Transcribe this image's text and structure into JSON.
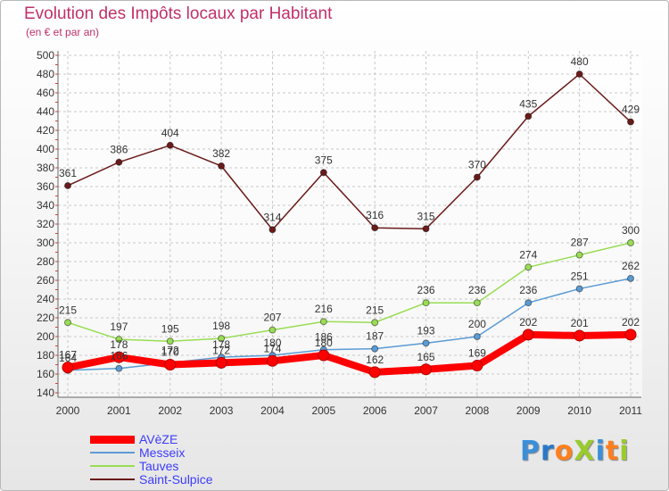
{
  "header": {
    "title": "Evolution des Impôts locaux par Habitant",
    "subtitle": "(en € et par an)"
  },
  "logo": {
    "text": "ProXiti",
    "letters": [
      "P",
      "r",
      "o",
      "X",
      "i",
      "t",
      "i"
    ],
    "colors": [
      "#3a8fd8",
      "#2a78c8",
      "#ff7f1e",
      "#9acb2e",
      "#3a8fd8",
      "#ff7f1e",
      "#9acb2e"
    ]
  },
  "chart_data": {
    "type": "line",
    "title": "Evolution des Impôts locaux par Habitant",
    "subtitle": "(en € et par an)",
    "xlabel": "",
    "ylabel": "",
    "categories": [
      "2000",
      "2001",
      "2002",
      "2003",
      "2004",
      "2005",
      "2006",
      "2007",
      "2008",
      "2009",
      "2010",
      "2011"
    ],
    "ylim": [
      140,
      500
    ],
    "yticks": [
      140,
      160,
      180,
      200,
      220,
      240,
      260,
      280,
      300,
      320,
      340,
      360,
      380,
      400,
      420,
      440,
      460,
      480,
      500
    ],
    "grid": true,
    "legend": "bottom-left",
    "series": [
      {
        "name": "AVèZE",
        "color": "#ff0000",
        "emphasis": true,
        "values": [
          167,
          178,
          170,
          172,
          174,
          180,
          162,
          165,
          169,
          202,
          201,
          202
        ]
      },
      {
        "name": "Messeix",
        "color": "#5b9bd5",
        "values": [
          164,
          166,
          172,
          178,
          180,
          186,
          187,
          193,
          200,
          236,
          251,
          262
        ]
      },
      {
        "name": "Tauves",
        "color": "#99dd55",
        "values": [
          215,
          197,
          195,
          198,
          207,
          216,
          215,
          236,
          236,
          274,
          287,
          300
        ]
      },
      {
        "name": "Saint-Sulpice",
        "color": "#6b1a1a",
        "values": [
          361,
          386,
          404,
          382,
          314,
          375,
          316,
          315,
          370,
          435,
          480,
          429
        ]
      }
    ]
  }
}
